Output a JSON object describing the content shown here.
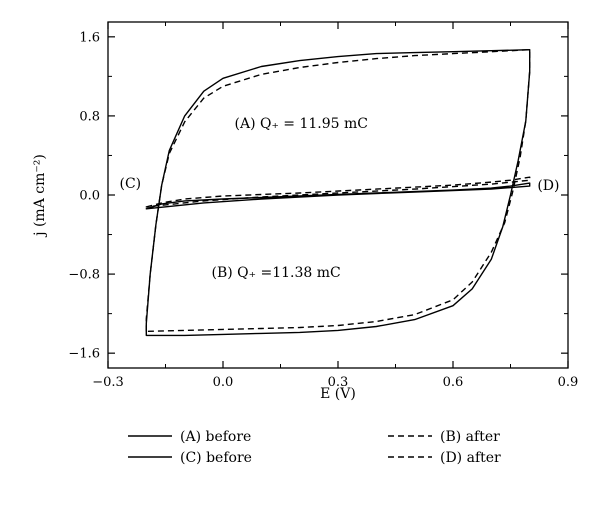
{
  "chart_data": {
    "type": "line",
    "xlabel": "E (V)",
    "ylabel": "j (mA cm⁻²)",
    "xlim": [
      -0.3,
      0.9
    ],
    "ylim": [
      -1.75,
      1.75
    ],
    "xticks": [
      -0.3,
      0.0,
      0.3,
      0.6,
      0.9
    ],
    "xtick_labels": [
      "−0.3",
      "0.0",
      "0.3",
      "0.6",
      "0.9"
    ],
    "yticks": [
      -1.6,
      -0.8,
      0.0,
      0.8,
      1.6
    ],
    "ytick_labels": [
      "−1.6",
      "−0.8",
      "0.0",
      "0.8",
      "1.6"
    ],
    "grid": false,
    "legend_position": "bottom",
    "annotations": [
      {
        "text": "(A) Q₊ = 11.95 mC",
        "x": 0.03,
        "y": 0.68
      },
      {
        "text": "(B) Q₊ =11.38 mC",
        "x": -0.03,
        "y": -0.83
      },
      {
        "text": "(C)",
        "x": -0.27,
        "y": 0.07
      },
      {
        "text": "(D)",
        "x": 0.82,
        "y": 0.05
      }
    ],
    "series": [
      {
        "name": "(A) before",
        "style": "solid",
        "points": [
          [
            -0.2,
            -1.42
          ],
          [
            -0.2,
            -1.3
          ],
          [
            -0.19,
            -0.8
          ],
          [
            -0.175,
            -0.3
          ],
          [
            -0.16,
            0.1
          ],
          [
            -0.14,
            0.45
          ],
          [
            -0.1,
            0.8
          ],
          [
            -0.05,
            1.05
          ],
          [
            0.0,
            1.18
          ],
          [
            0.1,
            1.3
          ],
          [
            0.2,
            1.36
          ],
          [
            0.3,
            1.4
          ],
          [
            0.4,
            1.43
          ],
          [
            0.5,
            1.44
          ],
          [
            0.6,
            1.45
          ],
          [
            0.7,
            1.46
          ],
          [
            0.8,
            1.47
          ],
          [
            0.8,
            1.25
          ],
          [
            0.79,
            0.75
          ],
          [
            0.77,
            0.35
          ],
          [
            0.75,
            0.0
          ],
          [
            0.73,
            -0.32
          ],
          [
            0.7,
            -0.65
          ],
          [
            0.65,
            -0.95
          ],
          [
            0.6,
            -1.12
          ],
          [
            0.5,
            -1.26
          ],
          [
            0.4,
            -1.33
          ],
          [
            0.3,
            -1.37
          ],
          [
            0.2,
            -1.39
          ],
          [
            0.1,
            -1.4
          ],
          [
            0.0,
            -1.41
          ],
          [
            -0.1,
            -1.42
          ],
          [
            -0.2,
            -1.42
          ]
        ]
      },
      {
        "name": "(B) after",
        "style": "dashed",
        "points": [
          [
            -0.2,
            -1.38
          ],
          [
            -0.2,
            -1.25
          ],
          [
            -0.19,
            -0.8
          ],
          [
            -0.175,
            -0.3
          ],
          [
            -0.16,
            0.1
          ],
          [
            -0.14,
            0.42
          ],
          [
            -0.1,
            0.74
          ],
          [
            -0.05,
            0.98
          ],
          [
            0.0,
            1.1
          ],
          [
            0.1,
            1.22
          ],
          [
            0.2,
            1.29
          ],
          [
            0.3,
            1.34
          ],
          [
            0.4,
            1.38
          ],
          [
            0.5,
            1.41
          ],
          [
            0.6,
            1.43
          ],
          [
            0.7,
            1.45
          ],
          [
            0.8,
            1.47
          ],
          [
            0.8,
            1.25
          ],
          [
            0.79,
            0.75
          ],
          [
            0.775,
            0.38
          ],
          [
            0.755,
            0.02
          ],
          [
            0.735,
            -0.28
          ],
          [
            0.7,
            -0.58
          ],
          [
            0.65,
            -0.88
          ],
          [
            0.6,
            -1.06
          ],
          [
            0.5,
            -1.21
          ],
          [
            0.4,
            -1.28
          ],
          [
            0.3,
            -1.32
          ],
          [
            0.2,
            -1.34
          ],
          [
            0.1,
            -1.35
          ],
          [
            0.0,
            -1.36
          ],
          [
            -0.1,
            -1.37
          ],
          [
            -0.2,
            -1.38
          ]
        ]
      },
      {
        "name": "(C) before",
        "style": "solid",
        "points": [
          [
            -0.2,
            -0.14
          ],
          [
            -0.16,
            -0.09
          ],
          [
            -0.1,
            -0.06
          ],
          [
            0.0,
            -0.04
          ],
          [
            0.2,
            -0.01
          ],
          [
            0.4,
            0.02
          ],
          [
            0.6,
            0.05
          ],
          [
            0.7,
            0.07
          ],
          [
            0.75,
            0.09
          ],
          [
            0.8,
            0.12
          ],
          [
            0.8,
            0.09
          ],
          [
            0.7,
            0.06
          ],
          [
            0.5,
            0.03
          ],
          [
            0.3,
            0.0
          ],
          [
            0.1,
            -0.04
          ],
          [
            -0.05,
            -0.08
          ],
          [
            -0.2,
            -0.14
          ]
        ]
      },
      {
        "name": "(D) after",
        "style": "dashed",
        "points": [
          [
            -0.2,
            -0.12
          ],
          [
            -0.16,
            -0.08
          ],
          [
            -0.1,
            -0.04
          ],
          [
            0.0,
            -0.01
          ],
          [
            0.2,
            0.02
          ],
          [
            0.4,
            0.06
          ],
          [
            0.6,
            0.1
          ],
          [
            0.7,
            0.13
          ],
          [
            0.75,
            0.15
          ],
          [
            0.8,
            0.18
          ],
          [
            0.8,
            0.15
          ],
          [
            0.7,
            0.11
          ],
          [
            0.5,
            0.06
          ],
          [
            0.3,
            0.02
          ],
          [
            0.1,
            -0.02
          ],
          [
            -0.05,
            -0.06
          ],
          [
            -0.2,
            -0.12
          ]
        ]
      }
    ]
  }
}
